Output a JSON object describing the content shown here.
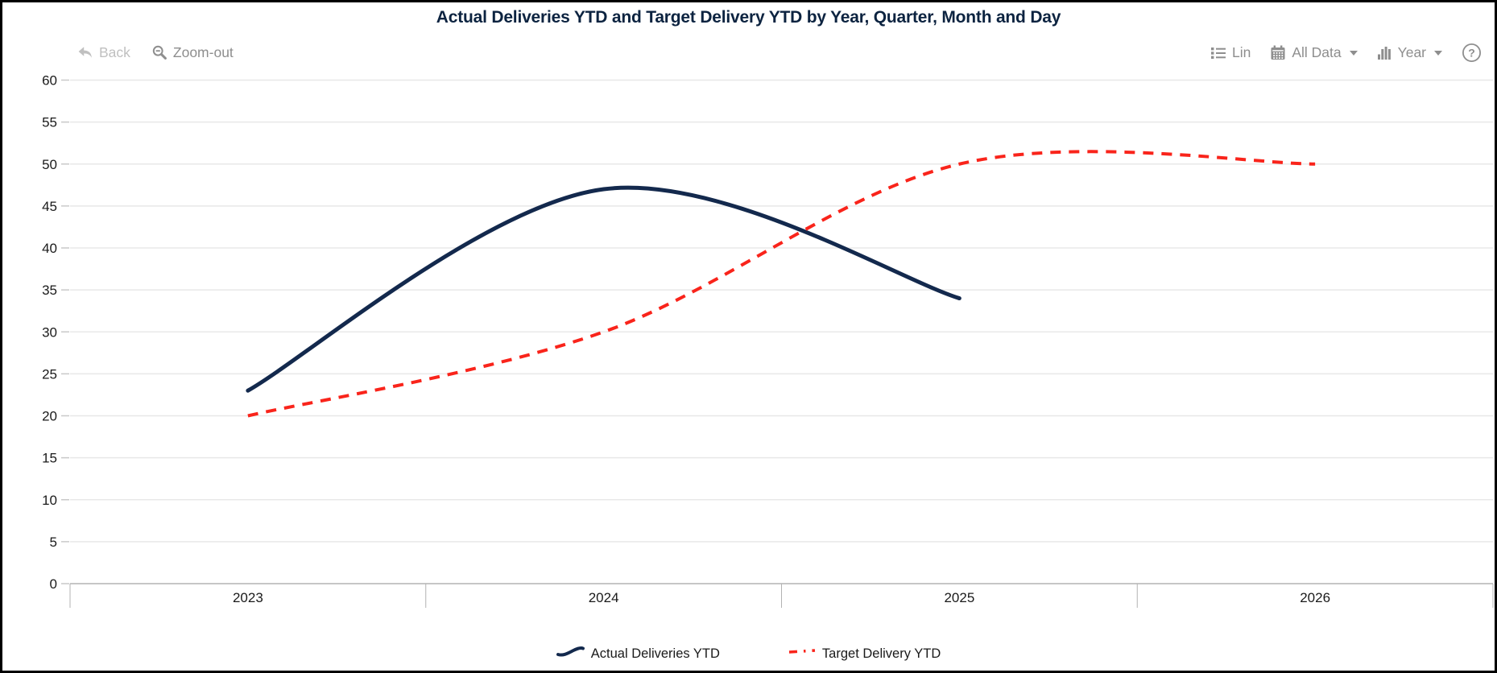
{
  "title": "Actual Deliveries YTD and Target Delivery YTD by Year, Quarter, Month and Day",
  "toolbar": {
    "back": "Back",
    "zoom_out": "Zoom-out",
    "lin": "Lin",
    "all_data": "All Data",
    "year": "Year",
    "help": "?"
  },
  "icons": {
    "back": "undo-arrow-icon",
    "zoom_out": "magnifier-minus-icon",
    "lin": "list-icon",
    "all_data": "calendar-icon",
    "year": "bar-columns-icon",
    "help": "question-circle-icon",
    "dropdown": "chevron-down-icon"
  },
  "colors": {
    "title": "#0c2340",
    "actual": "#13294d",
    "target": "#f9241b",
    "toolbar_text": "#8e8e8e",
    "disabled_text": "#c0c0c0",
    "grid": "#e8e8e8",
    "axis": "#b3b3b3",
    "tick": "#c9c9c9",
    "label": "#1a1a1a"
  },
  "chart_data": {
    "type": "line",
    "x_categories": [
      "2023",
      "2024",
      "2025",
      "2026"
    ],
    "series": [
      {
        "name": "Actual Deliveries YTD",
        "color": "#13294d",
        "line_style": "solid",
        "values": [
          23,
          47,
          34,
          null
        ]
      },
      {
        "name": "Target Delivery YTD",
        "color": "#f9241b",
        "line_style": "dashed",
        "values": [
          20,
          30,
          50,
          50
        ]
      }
    ],
    "ylim": [
      0,
      60
    ],
    "ytick_step": 5,
    "grid": "horizontal",
    "smooth": true,
    "legend_position": "bottom",
    "xlabel": "",
    "ylabel": ""
  }
}
